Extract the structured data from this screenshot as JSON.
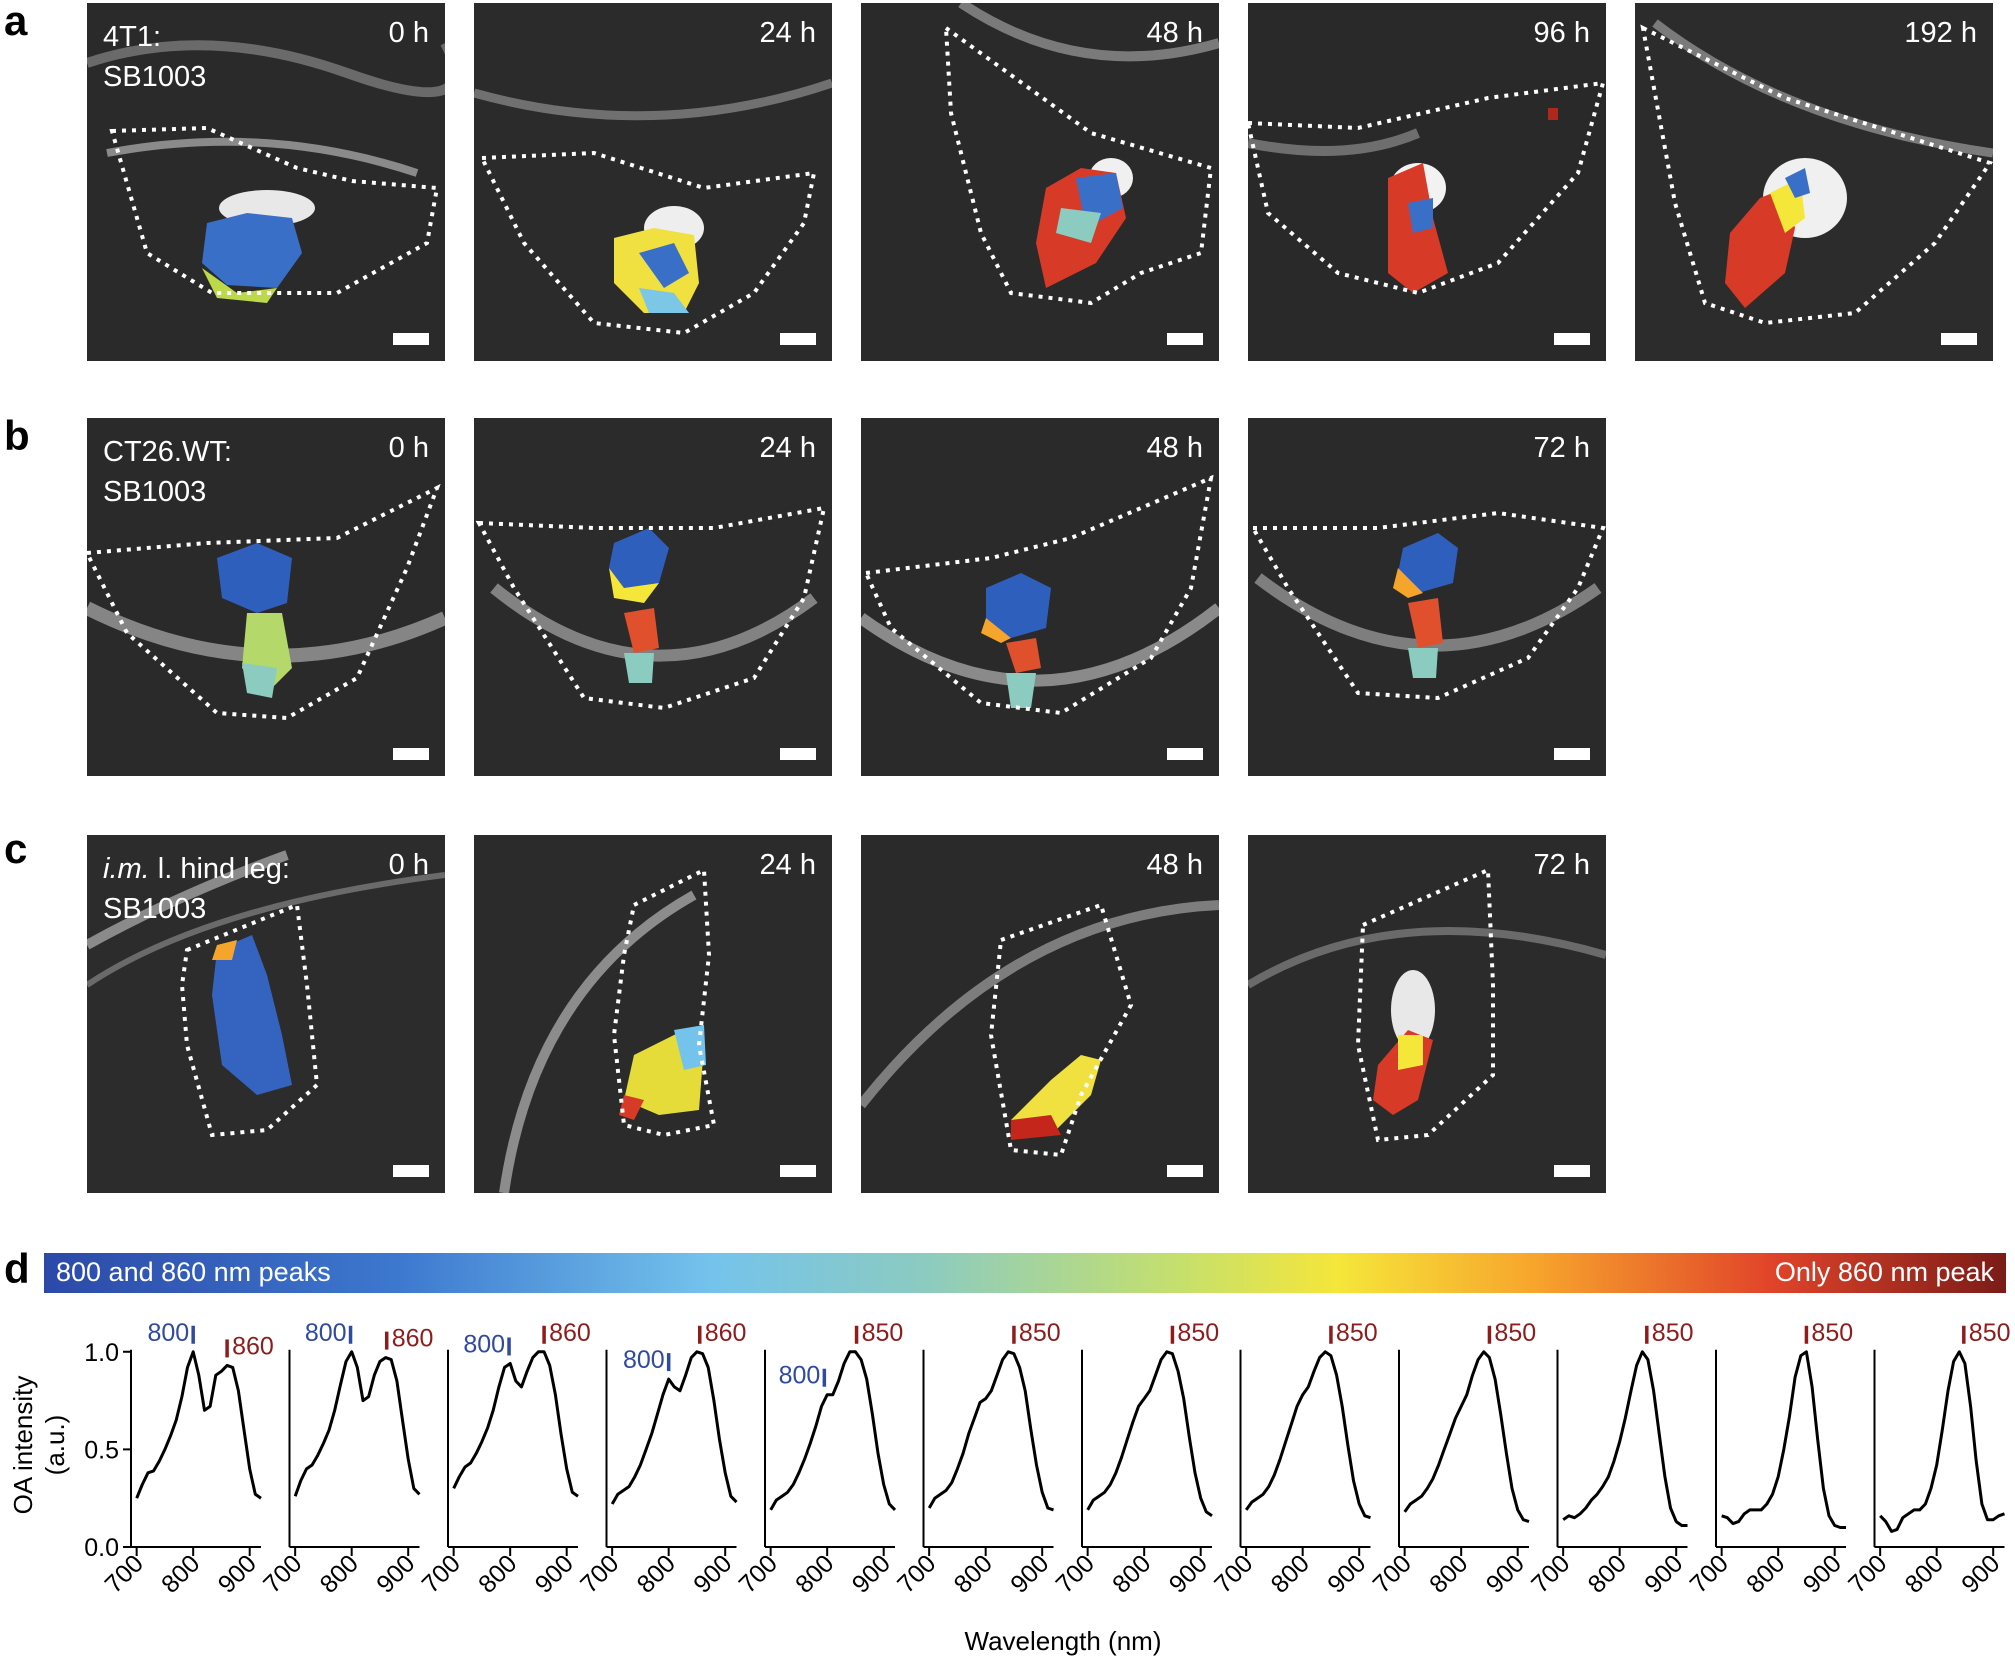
{
  "panels": {
    "a": {
      "letter": "a",
      "cell_line": "4T1:",
      "strain": "SB1003",
      "times": [
        "0 h",
        "24 h",
        "48 h",
        "96 h",
        "192 h"
      ]
    },
    "b": {
      "letter": "b",
      "cell_line": "CT26.WT:",
      "strain": "SB1003",
      "times": [
        "0 h",
        "24 h",
        "48 h",
        "72 h"
      ]
    },
    "c": {
      "letter": "c",
      "site_italic": "i.m.",
      "site_rest": " l. hind leg:",
      "strain": "SB1003",
      "times": [
        "0 h",
        "24 h",
        "48 h",
        "72 h"
      ]
    },
    "d": {
      "letter": "d"
    }
  },
  "colorbar": {
    "left_label": "800 and 860 nm peaks",
    "right_label": "Only 860 nm peak"
  },
  "colors": {
    "blue_marker": "#2f4aa0",
    "red_marker": "#8e1c1c",
    "curve": "#000000"
  },
  "chart_data": {
    "type": "line",
    "ylabel_line1": "OA intensity",
    "ylabel_line2": "(a.u.)",
    "xlabel": "Wavelength (nm)",
    "xlim": [
      690,
      920
    ],
    "ylim": [
      0,
      1.05
    ],
    "yticks": [
      "0.0",
      "0.5",
      "1.0"
    ],
    "xticks": [
      "700",
      "800",
      "900"
    ],
    "x": [
      700,
      710,
      720,
      730,
      740,
      750,
      760,
      770,
      780,
      790,
      800,
      810,
      820,
      830,
      840,
      850,
      860,
      870,
      880,
      890,
      900,
      910,
      920
    ],
    "spectra": [
      {
        "markers": [
          {
            "label": "800",
            "wl": 800,
            "y": 1.0,
            "color": "blue"
          },
          {
            "label": "860",
            "wl": 860,
            "y": 0.93,
            "color": "red"
          }
        ],
        "values": [
          0.25,
          0.32,
          0.38,
          0.39,
          0.44,
          0.5,
          0.57,
          0.65,
          0.77,
          0.92,
          1.0,
          0.88,
          0.7,
          0.72,
          0.88,
          0.9,
          0.93,
          0.92,
          0.8,
          0.6,
          0.4,
          0.27,
          0.25
        ]
      },
      {
        "markers": [
          {
            "label": "800",
            "wl": 798,
            "y": 1.0,
            "color": "blue"
          },
          {
            "label": "860",
            "wl": 862,
            "y": 0.97,
            "color": "red"
          }
        ],
        "values": [
          0.26,
          0.34,
          0.4,
          0.42,
          0.47,
          0.53,
          0.6,
          0.7,
          0.83,
          0.95,
          1.0,
          0.92,
          0.75,
          0.77,
          0.88,
          0.95,
          0.97,
          0.96,
          0.85,
          0.65,
          0.45,
          0.3,
          0.27
        ]
      },
      {
        "markers": [
          {
            "label": "800",
            "wl": 798,
            "y": 0.94,
            "color": "blue"
          },
          {
            "label": "860",
            "wl": 860,
            "y": 1.0,
            "color": "red"
          }
        ],
        "values": [
          0.3,
          0.36,
          0.41,
          0.43,
          0.48,
          0.54,
          0.61,
          0.7,
          0.82,
          0.92,
          0.94,
          0.85,
          0.82,
          0.9,
          0.97,
          1.0,
          1.0,
          0.93,
          0.78,
          0.58,
          0.4,
          0.28,
          0.26
        ]
      },
      {
        "markers": [
          {
            "label": "800",
            "wl": 800,
            "y": 0.86,
            "color": "blue"
          },
          {
            "label": "860",
            "wl": 855,
            "y": 1.0,
            "color": "red"
          }
        ],
        "values": [
          0.22,
          0.27,
          0.29,
          0.31,
          0.36,
          0.42,
          0.5,
          0.58,
          0.68,
          0.78,
          0.86,
          0.82,
          0.8,
          0.88,
          0.97,
          1.0,
          0.99,
          0.92,
          0.75,
          0.55,
          0.38,
          0.26,
          0.23
        ]
      },
      {
        "markers": [
          {
            "label": "800",
            "wl": 795,
            "y": 0.78,
            "color": "blue"
          },
          {
            "label": "850",
            "wl": 852,
            "y": 1.0,
            "color": "red"
          }
        ],
        "values": [
          0.19,
          0.24,
          0.26,
          0.28,
          0.32,
          0.38,
          0.45,
          0.53,
          0.62,
          0.72,
          0.78,
          0.78,
          0.85,
          0.94,
          1.0,
          1.0,
          0.96,
          0.86,
          0.68,
          0.48,
          0.32,
          0.22,
          0.19
        ]
      },
      {
        "markers": [
          {
            "label": "850",
            "wl": 850,
            "y": 1.0,
            "color": "red"
          }
        ],
        "values": [
          0.2,
          0.25,
          0.27,
          0.29,
          0.33,
          0.4,
          0.48,
          0.58,
          0.66,
          0.74,
          0.76,
          0.8,
          0.88,
          0.96,
          1.0,
          0.99,
          0.92,
          0.8,
          0.6,
          0.42,
          0.28,
          0.2,
          0.19
        ]
      },
      {
        "markers": [
          {
            "label": "850",
            "wl": 850,
            "y": 1.0,
            "color": "red"
          }
        ],
        "values": [
          0.19,
          0.24,
          0.26,
          0.28,
          0.32,
          0.38,
          0.46,
          0.55,
          0.64,
          0.72,
          0.76,
          0.8,
          0.88,
          0.96,
          1.0,
          0.99,
          0.9,
          0.76,
          0.56,
          0.38,
          0.25,
          0.18,
          0.16
        ]
      },
      {
        "markers": [
          {
            "label": "850",
            "wl": 850,
            "y": 1.0,
            "color": "red"
          }
        ],
        "values": [
          0.19,
          0.23,
          0.25,
          0.27,
          0.31,
          0.37,
          0.45,
          0.54,
          0.63,
          0.72,
          0.78,
          0.82,
          0.9,
          0.97,
          1.0,
          0.98,
          0.88,
          0.72,
          0.52,
          0.34,
          0.22,
          0.16,
          0.15
        ]
      },
      {
        "markers": [
          {
            "label": "850",
            "wl": 850,
            "y": 1.0,
            "color": "red"
          }
        ],
        "values": [
          0.18,
          0.22,
          0.24,
          0.26,
          0.3,
          0.35,
          0.42,
          0.5,
          0.58,
          0.66,
          0.72,
          0.78,
          0.88,
          0.96,
          1.0,
          0.97,
          0.86,
          0.68,
          0.48,
          0.3,
          0.19,
          0.14,
          0.13
        ]
      },
      {
        "markers": [
          {
            "label": "850",
            "wl": 848,
            "y": 1.0,
            "color": "red"
          }
        ],
        "values": [
          0.14,
          0.16,
          0.15,
          0.17,
          0.2,
          0.24,
          0.27,
          0.31,
          0.36,
          0.44,
          0.54,
          0.66,
          0.8,
          0.93,
          1.0,
          0.96,
          0.8,
          0.58,
          0.36,
          0.2,
          0.13,
          0.11,
          0.11
        ]
      },
      {
        "markers": [
          {
            "label": "850",
            "wl": 850,
            "y": 1.0,
            "color": "red"
          }
        ],
        "values": [
          0.16,
          0.15,
          0.12,
          0.13,
          0.17,
          0.19,
          0.19,
          0.19,
          0.22,
          0.27,
          0.36,
          0.5,
          0.67,
          0.87,
          0.98,
          1.0,
          0.82,
          0.55,
          0.3,
          0.16,
          0.11,
          0.1,
          0.1
        ]
      },
      {
        "markers": [
          {
            "label": "850",
            "wl": 848,
            "y": 1.0,
            "color": "red"
          }
        ],
        "values": [
          0.16,
          0.13,
          0.08,
          0.09,
          0.15,
          0.17,
          0.19,
          0.19,
          0.22,
          0.3,
          0.42,
          0.6,
          0.8,
          0.95,
          1.0,
          0.94,
          0.72,
          0.44,
          0.22,
          0.14,
          0.14,
          0.16,
          0.17
        ]
      }
    ]
  }
}
